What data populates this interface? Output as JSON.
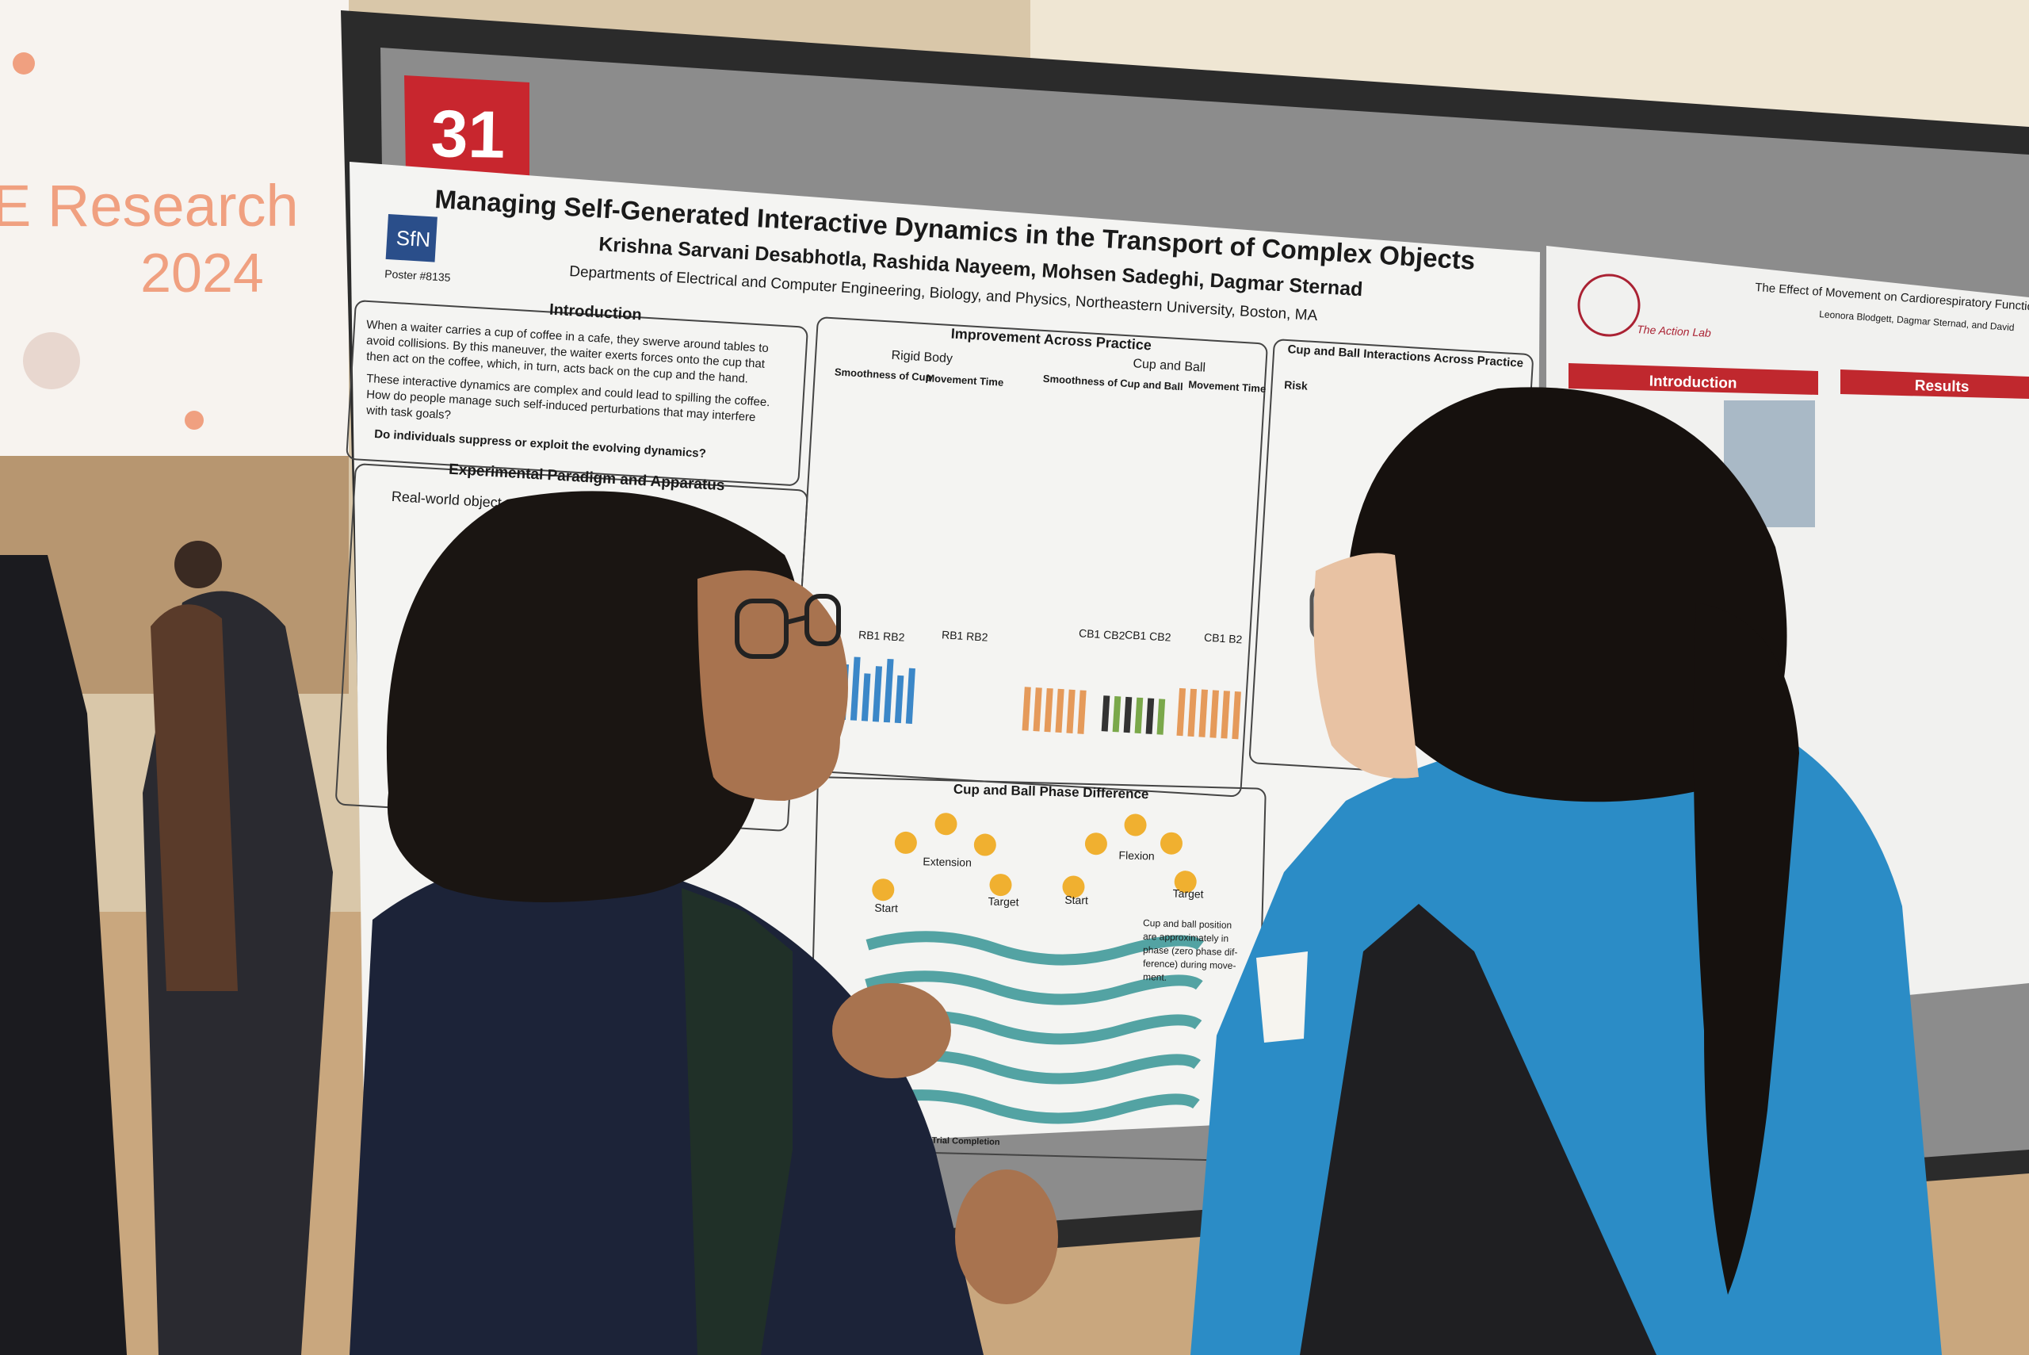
{
  "slide": {
    "line1": "E Research",
    "year": "2024"
  },
  "poster_number": "31",
  "poster": {
    "logo": "SfN",
    "poster_id": "Poster #8135",
    "title": "Managing Self-Generated Interactive Dynamics in the Transport of Complex Objects",
    "authors": "Krishna Sarvani Desabhotla, Rashida Nayeem, Mohsen Sadeghi, Dagmar Sternad",
    "affiliations": "Departments of Electrical and Computer Engineering, Biology, and Physics, Northeastern University, Boston, MA",
    "introduction": {
      "heading": "Introduction",
      "lines": [
        "When a waiter carries a cup of coffee in a cafe, they swerve around tables to",
        "avoid collisions. By this maneuver, the waiter exerts forces onto the cup that",
        "then act on the coffee, which, in turn, acts back on the cup and the hand.",
        "These interactive dynamics are complex and could lead to spilling the coffee.",
        "How do people manage such self-induced perturbations that may interfere",
        "with task goals?"
      ],
      "question": "Do individuals suppress or exploit the evolving dynamics?"
    },
    "paradigm": {
      "heading": "Experimental Paradigm and Apparatus",
      "object": "Real-world object"
    },
    "improvement": {
      "heading": "Improvement Across Practice",
      "rigid_body": "Rigid Body",
      "cup_and_ball": "Cup and Ball",
      "panels": [
        "Smoothness of Cup",
        "Movement Time",
        "Smoothness of Cup and Ball",
        "Movement Time"
      ],
      "x_labels": [
        "RB1 RB2",
        "RB1 RB2",
        "CB1 CB2",
        "CB1 CB2",
        "CB1 B2"
      ]
    },
    "interactions": {
      "heading": "Cup and Ball Interactions Across Practice",
      "risk": "Risk"
    },
    "phase": {
      "heading": "Cup and Ball Phase Difference",
      "extension": "Extension",
      "flexion": "Flexion",
      "start": "Start",
      "target": "Target",
      "x_label": "Percent of Trial Completion",
      "note": [
        "Cup and ball position",
        "are approximately in",
        "phase (zero phase dif-",
        "ference) during move-",
        "ment."
      ]
    }
  },
  "right_poster": {
    "title": "The Effect of Movement on Cardiorespiratory Functio",
    "authors": "Leonora Blodgett, Dagmar Sternad, and David",
    "lab": "The Action Lab",
    "introduction": "Introduction",
    "results": "Results"
  }
}
